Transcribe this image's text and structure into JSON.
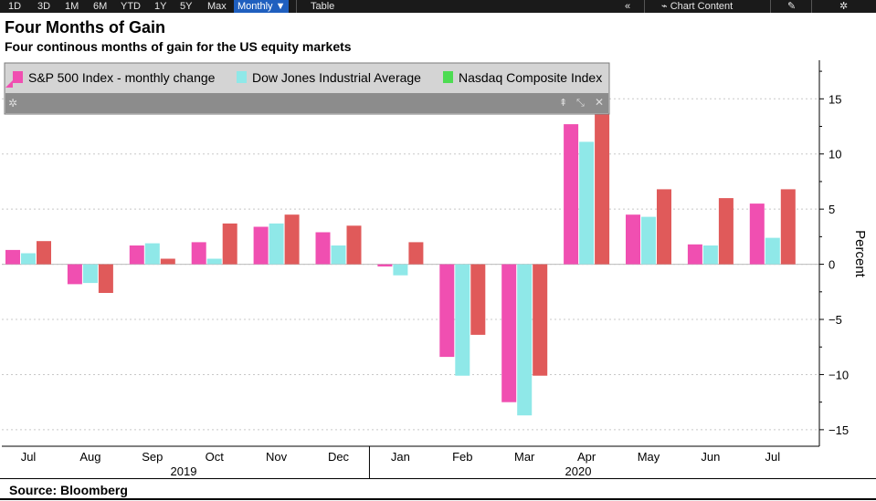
{
  "toolbar": {
    "ranges": [
      "1D",
      "3D",
      "1M",
      "6M",
      "YTD",
      "1Y",
      "5Y",
      "Max"
    ],
    "frequency": "Monthly ▼",
    "table": "Table",
    "collapse_icon": "«",
    "chart_content": "Chart Content",
    "edit_icon": "✎",
    "settings_icon": "✲"
  },
  "source": "Source: Bloomberg",
  "legend_colors": {
    "sp500": "#f04fb1",
    "dow": "#8fe8e8",
    "nasdaq": "#4ddc52",
    "nasdaq_bars": "#e05a5a"
  },
  "chart_data": {
    "type": "bar",
    "title": "Four Months of Gain",
    "subtitle": "Four continous months of gain for the US equity markets",
    "categories": [
      "Jul",
      "Aug",
      "Sep",
      "Oct",
      "Nov",
      "Dec",
      "Jan",
      "Feb",
      "Mar",
      "Apr",
      "May",
      "Jun",
      "Jul"
    ],
    "year_labels": [
      "2019",
      "2020"
    ],
    "series": [
      {
        "name": "S&P 500 Index - monthly change",
        "values": [
          1.3,
          -1.8,
          1.7,
          2.0,
          3.4,
          2.9,
          -0.2,
          -8.4,
          -12.5,
          12.7,
          4.5,
          1.8,
          5.5
        ]
      },
      {
        "name": "Dow Jones Industrial Average",
        "values": [
          1.0,
          -1.7,
          1.9,
          0.5,
          3.7,
          1.7,
          -1.0,
          -10.1,
          -13.7,
          11.1,
          4.3,
          1.7,
          2.4
        ]
      },
      {
        "name": "Nasdaq Composite Index",
        "values": [
          2.1,
          -2.6,
          0.5,
          3.7,
          4.5,
          3.5,
          2.0,
          -6.4,
          -10.1,
          15.5,
          6.8,
          6.0,
          6.8
        ]
      }
    ],
    "xlabel": "",
    "ylabel": "Percent",
    "ylim": [
      -16.5,
      18.5
    ],
    "yticks": [
      -15,
      -10,
      -5,
      0,
      5,
      10,
      15
    ],
    "grid": "horizontal dashed",
    "legend_position": "top-left"
  }
}
